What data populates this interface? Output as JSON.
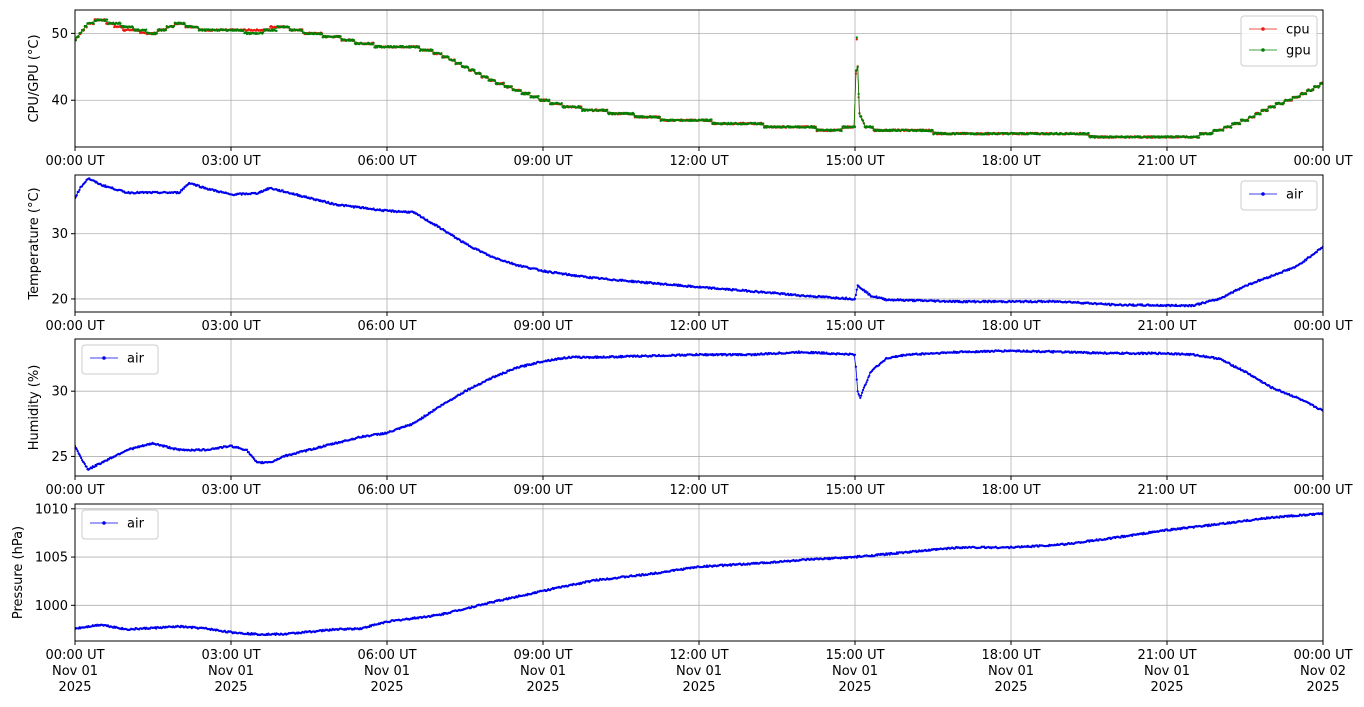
{
  "chart_data": [
    {
      "type": "line",
      "ylabel": "CPU/GPU (°C)",
      "ylim": [
        33,
        53.5
      ],
      "yticks": [
        40,
        50
      ],
      "xlim": [
        "2025-11-01 00:00",
        "2025-11-02 00:00"
      ],
      "grid": true,
      "legend": "top-right",
      "x_hours": [
        0,
        0.25,
        0.5,
        1,
        1.5,
        2,
        2.5,
        3,
        3.5,
        4,
        4.5,
        5,
        5.5,
        6,
        6.5,
        7,
        7.5,
        8,
        8.5,
        9,
        9.5,
        10,
        10.5,
        11,
        11.5,
        12,
        12.5,
        13,
        13.5,
        14,
        14.5,
        15,
        15.03,
        15.08,
        15.2,
        15.5,
        16,
        17,
        18,
        19,
        20,
        21,
        21.5,
        22,
        22.5,
        23,
        23.5,
        24
      ],
      "series": [
        {
          "name": "cpu",
          "color": "#e8190e",
          "values": [
            49,
            51.5,
            52,
            50.5,
            50,
            51.5,
            50.5,
            50.5,
            50.5,
            51,
            50,
            49.5,
            48.5,
            48,
            48,
            47,
            45,
            43,
            41.5,
            40,
            39,
            38.5,
            38,
            37.5,
            37,
            37,
            36.5,
            36.5,
            36,
            36,
            35.5,
            36,
            50,
            38,
            36,
            35.5,
            35.5,
            35,
            35,
            35,
            34.5,
            34.5,
            34.5,
            35.5,
            37,
            39,
            40.5,
            42.5
          ]
        },
        {
          "name": "gpu",
          "color": "#007f00",
          "values": [
            49,
            51.5,
            52,
            51,
            50,
            51.5,
            50.5,
            50.5,
            50,
            51,
            50,
            49.5,
            48.5,
            48,
            48,
            47,
            45,
            43,
            41.5,
            40,
            39,
            38.5,
            38,
            37.5,
            37,
            37,
            36.5,
            36.5,
            36,
            36,
            35.5,
            36,
            50.5,
            38,
            36,
            35.5,
            35.5,
            35,
            35,
            35,
            34.5,
            34.5,
            34.5,
            35.5,
            37,
            39,
            40.5,
            42.5
          ]
        }
      ],
      "xtick_labels": [
        "00:00 UT",
        "03:00 UT",
        "06:00 UT",
        "09:00 UT",
        "12:00 UT",
        "15:00 UT",
        "18:00 UT",
        "21:00 UT",
        "00:00 UT"
      ]
    },
    {
      "type": "line",
      "ylabel": "Temperature (°C)",
      "ylim": [
        18,
        39
      ],
      "yticks": [
        20,
        30
      ],
      "xlim": [
        "2025-11-01 00:00",
        "2025-11-02 00:00"
      ],
      "grid": true,
      "legend": "top-right",
      "x_hours": [
        0,
        0.1,
        0.25,
        0.5,
        1,
        1.5,
        2,
        2.2,
        2.5,
        3,
        3.5,
        3.75,
        4,
        4.5,
        5,
        5.5,
        6,
        6.5,
        7,
        7.5,
        8,
        8.5,
        9,
        9.5,
        10,
        11,
        12,
        13,
        14,
        15,
        15.05,
        15.1,
        15.3,
        15.6,
        16,
        17,
        18,
        19,
        20,
        21,
        21.5,
        22,
        22.5,
        23,
        23.5,
        24
      ],
      "series": [
        {
          "name": "air",
          "color": "#0000ee",
          "values": [
            35.5,
            37,
            38.5,
            37.5,
            36.3,
            36.3,
            36.3,
            37.8,
            37,
            36,
            36.2,
            37,
            36.5,
            35.5,
            34.5,
            34,
            33.5,
            33.3,
            31,
            28.5,
            26.5,
            25.2,
            24.3,
            23.7,
            23.2,
            22.5,
            21.8,
            21.2,
            20.5,
            20,
            22,
            21.8,
            20.5,
            19.9,
            19.8,
            19.6,
            19.6,
            19.6,
            19.1,
            19,
            19,
            20,
            22,
            23.5,
            25,
            28
          ]
        }
      ],
      "xtick_labels": [
        "00:00 UT",
        "03:00 UT",
        "06:00 UT",
        "09:00 UT",
        "12:00 UT",
        "15:00 UT",
        "18:00 UT",
        "21:00 UT",
        "00:00 UT"
      ]
    },
    {
      "type": "line",
      "ylabel": "Humidity (%)",
      "ylim": [
        23.5,
        34
      ],
      "yticks": [
        25,
        30
      ],
      "xlim": [
        "2025-11-01 00:00",
        "2025-11-02 00:00"
      ],
      "grid": true,
      "legend": "top-left",
      "x_hours": [
        0,
        0.1,
        0.25,
        0.5,
        1,
        1.5,
        2,
        2.5,
        3,
        3.3,
        3.5,
        3.8,
        4,
        4.5,
        5,
        5.5,
        6,
        6.5,
        7,
        7.5,
        8,
        8.5,
        9,
        9.5,
        10,
        11,
        12,
        13,
        14,
        15,
        15.05,
        15.1,
        15.3,
        15.6,
        16,
        17,
        18,
        19,
        20,
        21,
        21.5,
        22,
        22.5,
        23,
        23.5,
        24
      ],
      "series": [
        {
          "name": "air",
          "color": "#0000ee",
          "values": [
            25.8,
            25,
            24,
            24.5,
            25.5,
            26,
            25.5,
            25.5,
            25.8,
            25.5,
            24.5,
            24.6,
            25,
            25.5,
            26,
            26.5,
            26.8,
            27.5,
            28.8,
            30,
            31,
            31.8,
            32.3,
            32.6,
            32.6,
            32.7,
            32.8,
            32.8,
            33,
            32.8,
            30,
            29.5,
            31.5,
            32.5,
            32.8,
            33,
            33.1,
            33,
            32.9,
            32.9,
            32.8,
            32.5,
            31.5,
            30.3,
            29.5,
            28.5
          ]
        }
      ],
      "xtick_labels": [
        "00:00 UT",
        "03:00 UT",
        "06:00 UT",
        "09:00 UT",
        "12:00 UT",
        "15:00 UT",
        "18:00 UT",
        "21:00 UT",
        "00:00 UT"
      ]
    },
    {
      "type": "line",
      "ylabel": "Pressure (hPa)",
      "ylim": [
        996.3,
        1010.5
      ],
      "yticks": [
        1000,
        1005,
        1010
      ],
      "xlim": [
        "2025-11-01 00:00",
        "2025-11-02 00:00"
      ],
      "grid": true,
      "legend": "top-left",
      "x_hours": [
        0,
        0.5,
        1,
        2,
        2.5,
        3,
        3.5,
        4,
        5,
        5.5,
        6,
        7,
        8,
        9,
        10,
        11,
        12,
        13,
        14,
        15,
        16,
        17,
        18,
        19,
        20,
        21,
        22,
        23,
        24
      ],
      "series": [
        {
          "name": "air",
          "color": "#0000ee",
          "values": [
            997.6,
            998,
            997.5,
            997.8,
            997.6,
            997.2,
            997,
            997,
            997.5,
            997.6,
            998.3,
            999,
            1000.3,
            1001.5,
            1002.6,
            1003.2,
            1004,
            1004.3,
            1004.7,
            1005,
            1005.5,
            1006,
            1006,
            1006.3,
            1007,
            1007.8,
            1008.4,
            1009.1,
            1009.5
          ]
        }
      ],
      "xtick_labels": [
        "00:00 UT\nNov 01\n2025",
        "03:00 UT\nNov 01\n2025",
        "06:00 UT\nNov 01\n2025",
        "09:00 UT\nNov 01\n2025",
        "12:00 UT\nNov 01\n2025",
        "15:00 UT\nNov 01\n2025",
        "18:00 UT\nNov 01\n2025",
        "21:00 UT\nNov 01\n2025",
        "00:00 UT\nNov 02\n2025"
      ]
    }
  ]
}
